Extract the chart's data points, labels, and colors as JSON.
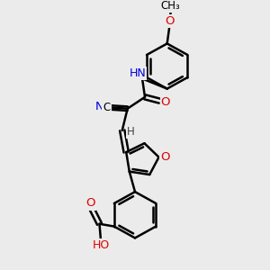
{
  "bg_color": "#ebebeb",
  "bond_color": "#000000",
  "bond_width": 1.8,
  "atom_colors": {
    "O": "#e00000",
    "N": "#0000e0",
    "C": "#000000",
    "H": "#404040"
  },
  "font_size": 8.5,
  "figsize": [
    3.0,
    3.0
  ],
  "dpi": 100,
  "xlim": [
    0,
    10
  ],
  "ylim": [
    0,
    10
  ]
}
